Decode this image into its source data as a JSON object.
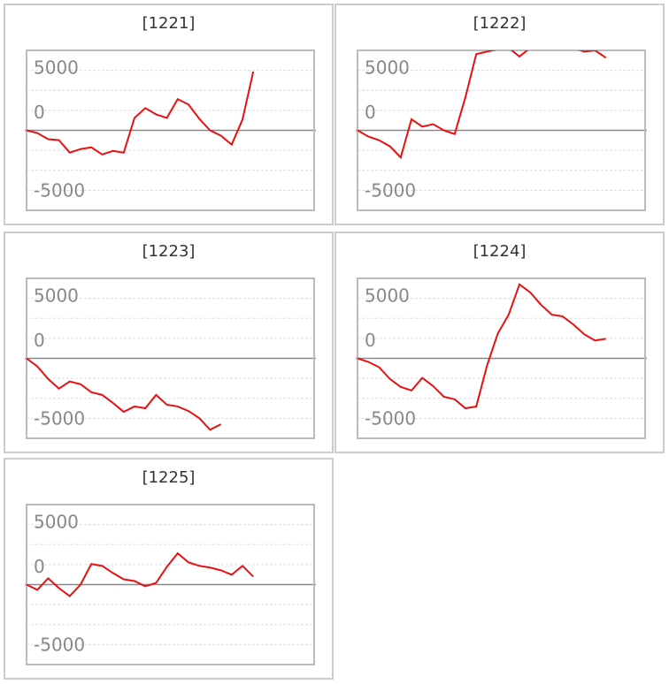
{
  "chart_data": [
    {
      "type": "line",
      "title": "[1221]",
      "color": "#e81010",
      "ylim": [
        -6500,
        6500
      ],
      "yticks": [
        5000,
        0,
        -5000
      ],
      "values": [
        0,
        -220,
        -720,
        -800,
        -1810,
        -1520,
        -1380,
        -1960,
        -1670,
        -1810,
        1010,
        1810,
        1300,
        1010,
        2540,
        2100,
        940,
        0,
        -430,
        -1160,
        870,
        4780
      ]
    },
    {
      "type": "line",
      "title": "[1222]",
      "color": "#e81010",
      "ylim": [
        -6500,
        6500
      ],
      "yticks": [
        5000,
        0,
        -5000
      ],
      "values": [
        0,
        -500,
        -800,
        -1300,
        -2200,
        900,
        300,
        500,
        0,
        -300,
        2700,
        6200,
        6400,
        6600,
        6700,
        6000,
        6700,
        6700,
        6700,
        6700,
        6700,
        6400,
        6500,
        5900
      ]
    },
    {
      "type": "line",
      "title": "[1223]",
      "color": "#e81010",
      "ylim": [
        -6500,
        6500
      ],
      "yticks": [
        5000,
        0,
        -5000
      ],
      "values": [
        0,
        -650,
        -1670,
        -2460,
        -1880,
        -2100,
        -2750,
        -2970,
        -3620,
        -4350,
        -3910,
        -4060,
        -2970,
        -3770,
        -3910,
        -4280,
        -4860,
        -5800,
        -5360
      ]
    },
    {
      "type": "line",
      "title": "[1224]",
      "color": "#e81010",
      "ylim": [
        -6500,
        6500
      ],
      "yticks": [
        5000,
        0,
        -5000
      ],
      "values": [
        0,
        -290,
        -720,
        -1670,
        -2320,
        -2610,
        -1590,
        -2250,
        -3120,
        -3330,
        -4060,
        -3910,
        -580,
        2030,
        3550,
        6010,
        5360,
        4350,
        3550,
        3410,
        2750,
        1960,
        1450,
        1590
      ]
    },
    {
      "type": "line",
      "title": "[1225]",
      "color": "#e81010",
      "ylim": [
        -6500,
        6500
      ],
      "yticks": [
        5000,
        0,
        -5000
      ],
      "values": [
        0,
        -430,
        510,
        -290,
        -940,
        0,
        1670,
        1520,
        940,
        430,
        290,
        -140,
        140,
        1450,
        2540,
        1810,
        1520,
        1380,
        1160,
        800,
        1520,
        650
      ]
    }
  ]
}
